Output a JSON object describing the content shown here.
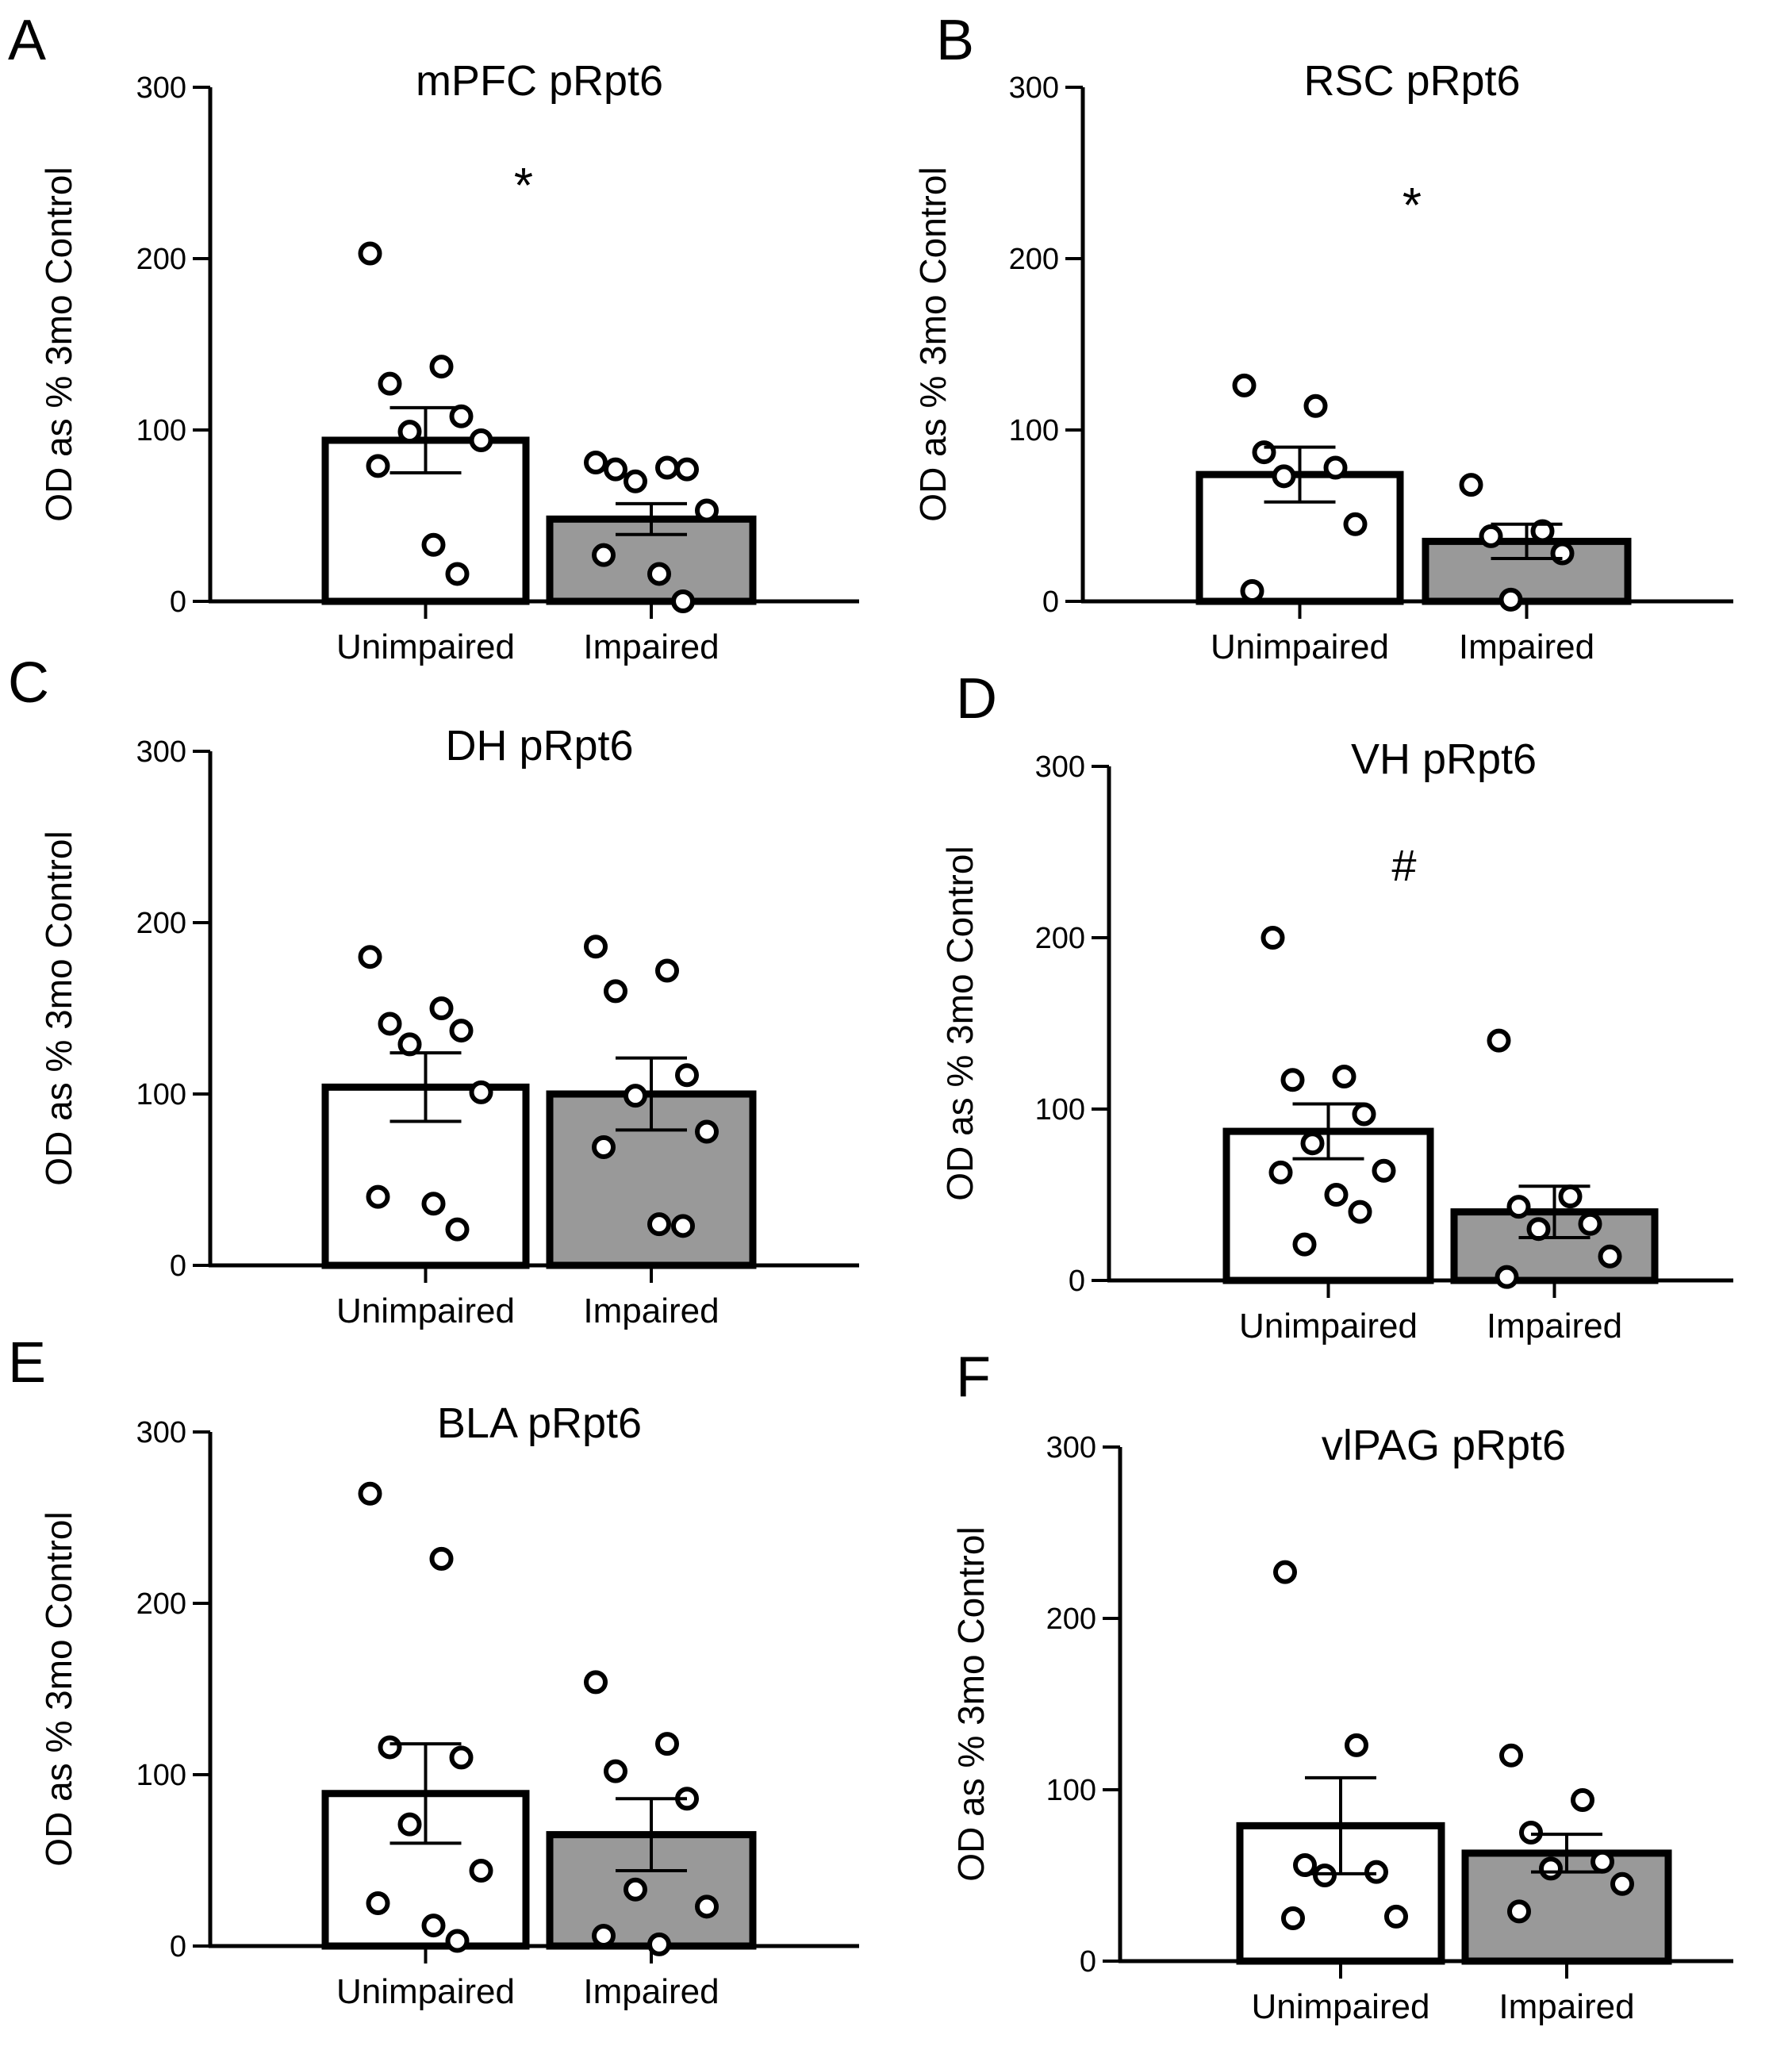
{
  "chart_data": [
    {
      "panel": "A",
      "type": "bar",
      "title": "mPFC pRpt6",
      "ylabel": "OD as  % 3mo Control",
      "xlabel": "",
      "ylim": [
        0,
        300
      ],
      "yticks": [
        0,
        100,
        200,
        300
      ],
      "categories": [
        "Unimpaired",
        "Impaired"
      ],
      "means": [
        94,
        48
      ],
      "sem": [
        19,
        9
      ],
      "points": [
        [
          203,
          137,
          127,
          108,
          99,
          94,
          79,
          33,
          16
        ],
        [
          81,
          78,
          77,
          77,
          70,
          53,
          27,
          16,
          0
        ]
      ],
      "significance": "*"
    },
    {
      "panel": "B",
      "type": "bar",
      "title": "RSC pRpt6",
      "ylabel": "OD as  % 3mo Control",
      "xlabel": "",
      "ylim": [
        0,
        300
      ],
      "yticks": [
        0,
        100,
        200,
        300
      ],
      "categories": [
        "Unimpaired",
        "Impaired"
      ],
      "means": [
        74,
        35
      ],
      "sem": [
        16,
        10
      ],
      "points": [
        [
          126,
          114,
          87,
          78,
          73,
          45,
          6
        ],
        [
          68,
          41,
          38,
          28,
          1
        ]
      ],
      "significance": "*"
    },
    {
      "panel": "C",
      "type": "bar",
      "title": "DH pRpt6",
      "ylabel": "OD as  % 3mo Control",
      "xlabel": "",
      "ylim": [
        0,
        300
      ],
      "yticks": [
        0,
        100,
        200,
        300
      ],
      "categories": [
        "Unimpaired",
        "Impaired"
      ],
      "means": [
        104,
        100
      ],
      "sem": [
        20,
        21
      ],
      "points": [
        [
          180,
          150,
          141,
          137,
          129,
          101,
          40,
          36,
          21
        ],
        [
          186,
          172,
          160,
          111,
          99,
          78,
          69,
          24,
          23
        ]
      ],
      "significance": ""
    },
    {
      "panel": "D",
      "type": "bar",
      "title": "VH pRpt6",
      "ylabel": "OD as  % 3mo Control",
      "xlabel": "",
      "ylim": [
        0,
        300
      ],
      "yticks": [
        0,
        100,
        200,
        300
      ],
      "categories": [
        "Unimpaired",
        "Impaired"
      ],
      "means": [
        87,
        40
      ],
      "sem": [
        16,
        15
      ],
      "points": [
        [
          200,
          119,
          117,
          97,
          80,
          64,
          63,
          50,
          40,
          21
        ],
        [
          140,
          49,
          43,
          33,
          30,
          14,
          2
        ]
      ],
      "significance": "#"
    },
    {
      "panel": "E",
      "type": "bar",
      "title": "BLA pRpt6",
      "ylabel": "OD as  % 3mo Control",
      "xlabel": "",
      "ylim": [
        0,
        300
      ],
      "yticks": [
        0,
        100,
        200,
        300
      ],
      "categories": [
        "Unimpaired",
        "Impaired"
      ],
      "means": [
        89,
        65
      ],
      "sem": [
        29,
        21
      ],
      "points": [
        [
          264,
          226,
          116,
          110,
          71,
          44,
          25,
          12,
          3
        ],
        [
          154,
          118,
          102,
          86,
          33,
          23,
          6,
          1
        ]
      ],
      "significance": ""
    },
    {
      "panel": "F",
      "type": "bar",
      "title": "vlPAG pRpt6",
      "ylabel": "OD as  % 3mo Control",
      "xlabel": "",
      "ylim": [
        0,
        300
      ],
      "yticks": [
        0,
        100,
        200,
        300
      ],
      "categories": [
        "Unimpaired",
        "Impaired"
      ],
      "means": [
        79,
        63
      ],
      "sem": [
        28,
        11
      ],
      "points": [
        [
          227,
          126,
          56,
          52,
          50,
          26,
          25
        ],
        [
          120,
          94,
          75,
          58,
          54,
          45,
          29
        ]
      ],
      "significance": ""
    }
  ]
}
